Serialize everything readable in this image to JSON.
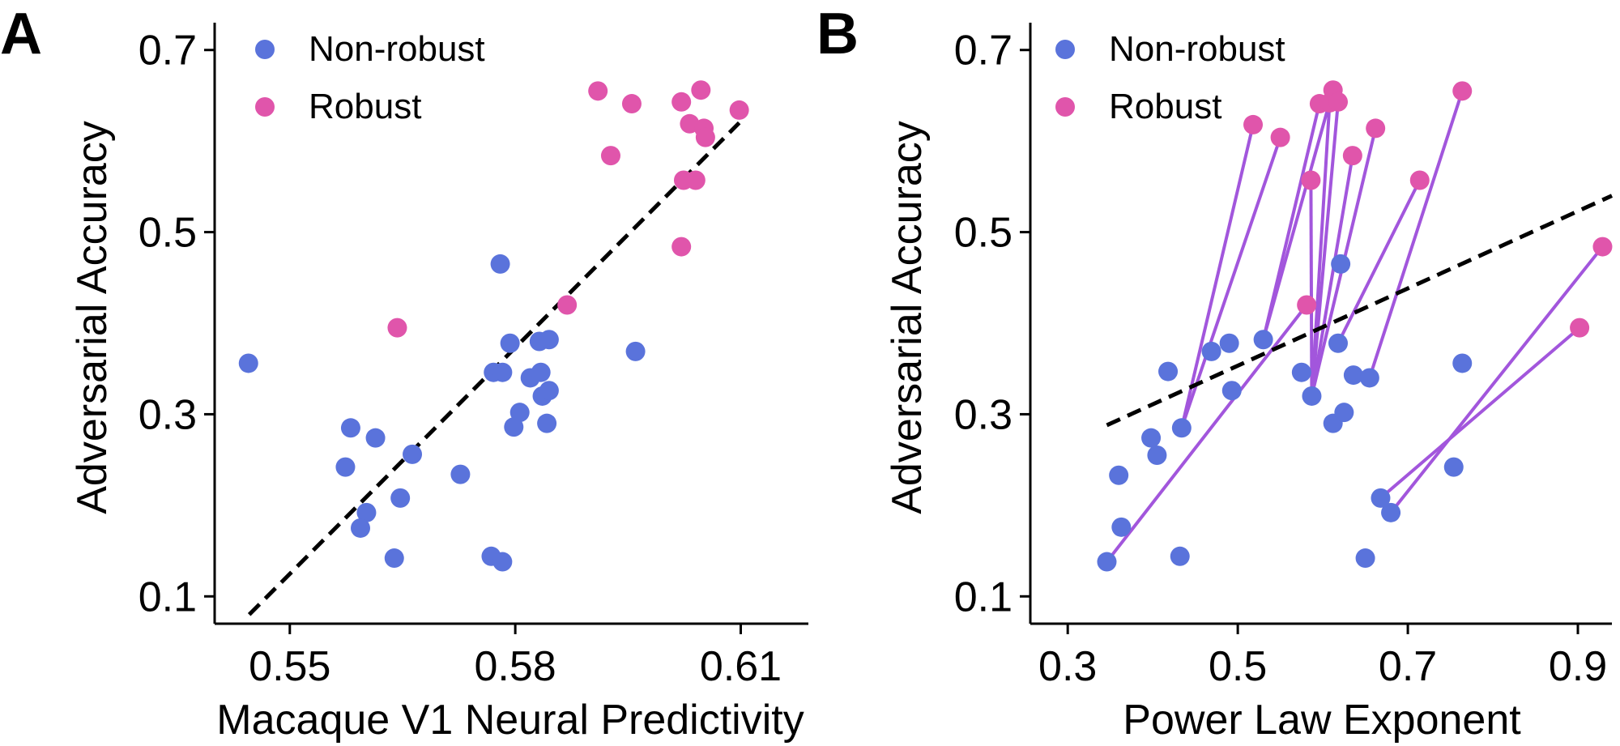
{
  "colors": {
    "nonrobust": "#5a73db",
    "robust": "#e055ab",
    "pair_line": "#a256dc",
    "fit": "#000000"
  },
  "chart_data": [
    {
      "panel": "A",
      "type": "scatter",
      "xlabel": "Macaque V1 Neural Predictivity",
      "ylabel": "Adversarial Accuracy",
      "xlim": [
        0.54,
        0.619
      ],
      "ylim": [
        0.07,
        0.73
      ],
      "xticks": [
        "0.55",
        "0.58",
        "0.61"
      ],
      "yticks": [
        "0.1",
        "0.3",
        "0.5",
        "0.7"
      ],
      "legend": "top-left",
      "fit_line": {
        "x": [
          0.5446,
          0.6098
        ],
        "y": [
          0.08,
          0.62
        ]
      },
      "series": [
        {
          "name": "Non-robust",
          "color": "#5a73db",
          "points": [
            [
              0.5445,
              0.356
            ],
            [
              0.5581,
              0.285
            ],
            [
              0.5614,
              0.274
            ],
            [
              0.5574,
              0.242
            ],
            [
              0.5663,
              0.256
            ],
            [
              0.5647,
              0.208
            ],
            [
              0.5727,
              0.234
            ],
            [
              0.5602,
              0.192
            ],
            [
              0.5594,
              0.175
            ],
            [
              0.5639,
              0.142
            ],
            [
              0.5768,
              0.144
            ],
            [
              0.5783,
              0.138
            ],
            [
              0.578,
              0.465
            ],
            [
              0.5793,
              0.378
            ],
            [
              0.5771,
              0.346
            ],
            [
              0.5783,
              0.346
            ],
            [
              0.582,
              0.34
            ],
            [
              0.5834,
              0.346
            ],
            [
              0.5832,
              0.38
            ],
            [
              0.5845,
              0.382
            ],
            [
              0.5806,
              0.302
            ],
            [
              0.5798,
              0.286
            ],
            [
              0.5836,
              0.32
            ],
            [
              0.5845,
              0.326
            ],
            [
              0.5842,
              0.29
            ],
            [
              0.596,
              0.369
            ]
          ]
        },
        {
          "name": "Robust",
          "color": "#e055ab",
          "points": [
            [
              0.591,
              0.655
            ],
            [
              0.5955,
              0.641
            ],
            [
              0.6021,
              0.643
            ],
            [
              0.6047,
              0.656
            ],
            [
              0.6098,
              0.634
            ],
            [
              0.6032,
              0.619
            ],
            [
              0.6051,
              0.614
            ],
            [
              0.6053,
              0.604
            ],
            [
              0.5927,
              0.584
            ],
            [
              0.6024,
              0.557
            ],
            [
              0.604,
              0.557
            ],
            [
              0.6021,
              0.484
            ],
            [
              0.5869,
              0.42
            ],
            [
              0.5643,
              0.395
            ]
          ]
        }
      ]
    },
    {
      "panel": "B",
      "type": "scatter",
      "xlabel": "Power Law Exponent",
      "ylabel": "Adversarial Accuracy",
      "xlim": [
        0.256,
        0.94
      ],
      "ylim": [
        0.07,
        0.73
      ],
      "xticks": [
        "0.3",
        "0.5",
        "0.7",
        "0.9"
      ],
      "yticks": [
        "0.1",
        "0.3",
        "0.5",
        "0.7"
      ],
      "legend": "top-left",
      "fit_line": {
        "x": [
          0.346,
          0.94
        ],
        "y": [
          0.288,
          0.54
        ]
      },
      "series": [
        {
          "name": "Non-robust",
          "color": "#5a73db",
          "points": [
            [
              0.346,
              0.138
            ],
            [
              0.363,
              0.176
            ],
            [
              0.36,
              0.233
            ],
            [
              0.398,
              0.274
            ],
            [
              0.405,
              0.255
            ],
            [
              0.418,
              0.347
            ],
            [
              0.432,
              0.144
            ],
            [
              0.434,
              0.285
            ],
            [
              0.469,
              0.369
            ],
            [
              0.49,
              0.378
            ],
            [
              0.493,
              0.326
            ],
            [
              0.53,
              0.382
            ],
            [
              0.575,
              0.346
            ],
            [
              0.587,
              0.32
            ],
            [
              0.612,
              0.29
            ],
            [
              0.618,
              0.378
            ],
            [
              0.621,
              0.465
            ],
            [
              0.625,
              0.302
            ],
            [
              0.636,
              0.343
            ],
            [
              0.65,
              0.142
            ],
            [
              0.655,
              0.34
            ],
            [
              0.668,
              0.208
            ],
            [
              0.68,
              0.192
            ],
            [
              0.754,
              0.242
            ],
            [
              0.764,
              0.356
            ]
          ]
        },
        {
          "name": "Robust",
          "color": "#e055ab",
          "points": [
            [
              0.518,
              0.618
            ],
            [
              0.55,
              0.604
            ],
            [
              0.581,
              0.42
            ],
            [
              0.586,
              0.557
            ],
            [
              0.596,
              0.641
            ],
            [
              0.608,
              0.642
            ],
            [
              0.612,
              0.656
            ],
            [
              0.618,
              0.643
            ],
            [
              0.635,
              0.584
            ],
            [
              0.662,
              0.614
            ],
            [
              0.714,
              0.557
            ],
            [
              0.764,
              0.655
            ],
            [
              0.902,
              0.395
            ],
            [
              0.929,
              0.484
            ]
          ]
        }
      ],
      "pairs": [
        [
          [
            0.346,
            0.138
          ],
          [
            0.581,
            0.42
          ]
        ],
        [
          [
            0.434,
            0.285
          ],
          [
            0.518,
            0.618
          ]
        ],
        [
          [
            0.434,
            0.285
          ],
          [
            0.55,
            0.604
          ]
        ],
        [
          [
            0.53,
            0.382
          ],
          [
            0.596,
            0.641
          ]
        ],
        [
          [
            0.53,
            0.382
          ],
          [
            0.612,
            0.656
          ]
        ],
        [
          [
            0.587,
            0.32
          ],
          [
            0.586,
            0.557
          ]
        ],
        [
          [
            0.587,
            0.32
          ],
          [
            0.608,
            0.642
          ]
        ],
        [
          [
            0.587,
            0.32
          ],
          [
            0.618,
            0.643
          ]
        ],
        [
          [
            0.587,
            0.32
          ],
          [
            0.635,
            0.584
          ]
        ],
        [
          [
            0.587,
            0.32
          ],
          [
            0.662,
            0.614
          ]
        ],
        [
          [
            0.618,
            0.378
          ],
          [
            0.714,
            0.557
          ]
        ],
        [
          [
            0.655,
            0.34
          ],
          [
            0.764,
            0.655
          ]
        ],
        [
          [
            0.668,
            0.208
          ],
          [
            0.902,
            0.395
          ]
        ],
        [
          [
            0.68,
            0.192
          ],
          [
            0.929,
            0.484
          ]
        ]
      ]
    }
  ]
}
